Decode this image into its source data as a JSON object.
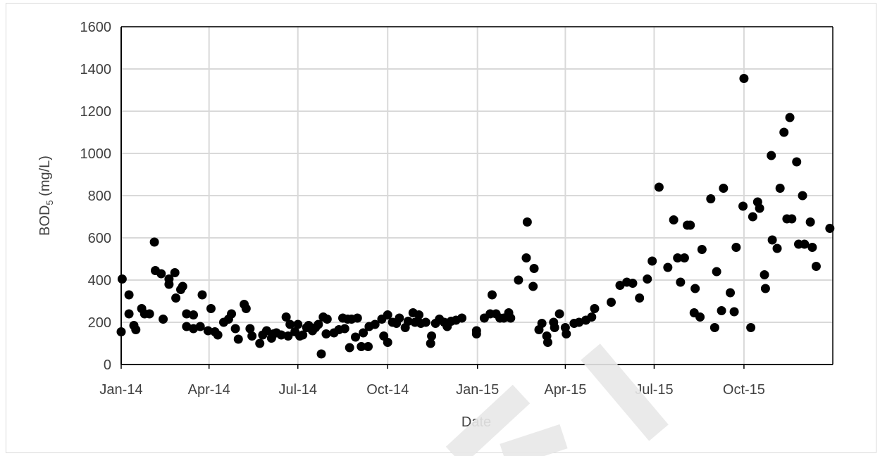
{
  "chart_data": {
    "type": "scatter",
    "xlabel": "Date",
    "ylabel_main": "BOD",
    "ylabel_sub": "5",
    "ylabel_unit": " (mg/L)",
    "x_ticks": [
      "Jan-14",
      "Apr-14",
      "Jul-14",
      "Oct-14",
      "Jan-15",
      "Apr-15",
      "Jul-15",
      "Oct-15"
    ],
    "x_tick_dates": [
      "2014-01-01",
      "2014-04-01",
      "2014-07-01",
      "2014-10-01",
      "2015-01-01",
      "2015-04-01",
      "2015-07-01",
      "2015-10-01"
    ],
    "xlim": [
      "2014-01-01",
      "2015-12-31"
    ],
    "ylim": [
      0,
      1600
    ],
    "y_ticks": [
      0,
      200,
      400,
      600,
      800,
      1000,
      1200,
      1400,
      1600
    ],
    "grid": true,
    "marker_color": "#000000",
    "points": [
      [
        "2014-01-01",
        155
      ],
      [
        "2014-01-02",
        405
      ],
      [
        "2014-01-09",
        330
      ],
      [
        "2014-01-09",
        240
      ],
      [
        "2014-01-14",
        185
      ],
      [
        "2014-01-16",
        165
      ],
      [
        "2014-01-22",
        265
      ],
      [
        "2014-01-25",
        240
      ],
      [
        "2014-01-30",
        240
      ],
      [
        "2014-02-04",
        580
      ],
      [
        "2014-02-05",
        445
      ],
      [
        "2014-02-11",
        430
      ],
      [
        "2014-02-13",
        215
      ],
      [
        "2014-02-19",
        405
      ],
      [
        "2014-02-19",
        380
      ],
      [
        "2014-02-25",
        435
      ],
      [
        "2014-02-26",
        315
      ],
      [
        "2014-03-03",
        355
      ],
      [
        "2014-03-05",
        370
      ],
      [
        "2014-03-09",
        180
      ],
      [
        "2014-03-09",
        240
      ],
      [
        "2014-03-16",
        170
      ],
      [
        "2014-03-16",
        235
      ],
      [
        "2014-03-23",
        180
      ],
      [
        "2014-03-25",
        330
      ],
      [
        "2014-03-31",
        160
      ],
      [
        "2014-04-03",
        265
      ],
      [
        "2014-04-07",
        155
      ],
      [
        "2014-04-10",
        140
      ],
      [
        "2014-04-16",
        200
      ],
      [
        "2014-04-21",
        215
      ],
      [
        "2014-04-24",
        240
      ],
      [
        "2014-04-28",
        170
      ],
      [
        "2014-05-01",
        120
      ],
      [
        "2014-05-07",
        285
      ],
      [
        "2014-05-09",
        265
      ],
      [
        "2014-05-13",
        170
      ],
      [
        "2014-05-15",
        135
      ],
      [
        "2014-05-23",
        100
      ],
      [
        "2014-05-26",
        140
      ],
      [
        "2014-05-30",
        160
      ],
      [
        "2014-06-04",
        125
      ],
      [
        "2014-06-06",
        145
      ],
      [
        "2014-06-09",
        150
      ],
      [
        "2014-06-14",
        140
      ],
      [
        "2014-06-19",
        225
      ],
      [
        "2014-06-21",
        135
      ],
      [
        "2014-06-23",
        190
      ],
      [
        "2014-06-28",
        155
      ],
      [
        "2014-07-01",
        190
      ],
      [
        "2014-07-03",
        135
      ],
      [
        "2014-07-06",
        140
      ],
      [
        "2014-07-10",
        175
      ],
      [
        "2014-07-12",
        185
      ],
      [
        "2014-07-16",
        160
      ],
      [
        "2014-07-19",
        175
      ],
      [
        "2014-07-22",
        190
      ],
      [
        "2014-07-25",
        50
      ],
      [
        "2014-07-27",
        225
      ],
      [
        "2014-07-30",
        145
      ],
      [
        "2014-07-31",
        215
      ],
      [
        "2014-08-07",
        150
      ],
      [
        "2014-08-12",
        165
      ],
      [
        "2014-08-16",
        220
      ],
      [
        "2014-08-18",
        170
      ],
      [
        "2014-08-21",
        215
      ],
      [
        "2014-08-23",
        80
      ],
      [
        "2014-08-25",
        215
      ],
      [
        "2014-08-29",
        130
      ],
      [
        "2014-08-31",
        220
      ],
      [
        "2014-09-04",
        85
      ],
      [
        "2014-09-06",
        150
      ],
      [
        "2014-09-11",
        85
      ],
      [
        "2014-09-12",
        180
      ],
      [
        "2014-09-18",
        190
      ],
      [
        "2014-09-25",
        215
      ],
      [
        "2014-09-27",
        135
      ],
      [
        "2014-10-01",
        105
      ],
      [
        "2014-10-01",
        235
      ],
      [
        "2014-10-06",
        200
      ],
      [
        "2014-10-10",
        195
      ],
      [
        "2014-10-13",
        220
      ],
      [
        "2014-10-19",
        175
      ],
      [
        "2014-10-22",
        205
      ],
      [
        "2014-10-27",
        245
      ],
      [
        "2014-10-29",
        200
      ],
      [
        "2014-11-02",
        235
      ],
      [
        "2014-11-04",
        195
      ],
      [
        "2014-11-09",
        200
      ],
      [
        "2014-11-14",
        100
      ],
      [
        "2014-11-15",
        135
      ],
      [
        "2014-11-19",
        195
      ],
      [
        "2014-11-23",
        215
      ],
      [
        "2014-11-28",
        200
      ],
      [
        "2014-12-01",
        180
      ],
      [
        "2014-12-05",
        205
      ],
      [
        "2014-12-10",
        210
      ],
      [
        "2014-12-16",
        220
      ],
      [
        "2014-12-31",
        160
      ],
      [
        "2014-12-31",
        145
      ],
      [
        "2015-01-08",
        220
      ],
      [
        "2015-01-14",
        240
      ],
      [
        "2015-01-16",
        330
      ],
      [
        "2015-01-20",
        240
      ],
      [
        "2015-01-24",
        220
      ],
      [
        "2015-01-28",
        220
      ],
      [
        "2015-02-02",
        245
      ],
      [
        "2015-02-04",
        220
      ],
      [
        "2015-02-12",
        400
      ],
      [
        "2015-02-20",
        505
      ],
      [
        "2015-02-21",
        675
      ],
      [
        "2015-02-27",
        370
      ],
      [
        "2015-02-28",
        455
      ],
      [
        "2015-03-05",
        165
      ],
      [
        "2015-03-08",
        195
      ],
      [
        "2015-03-13",
        135
      ],
      [
        "2015-03-14",
        105
      ],
      [
        "2015-03-20",
        200
      ],
      [
        "2015-03-21",
        175
      ],
      [
        "2015-03-26",
        240
      ],
      [
        "2015-04-01",
        175
      ],
      [
        "2015-04-02",
        145
      ],
      [
        "2015-04-10",
        195
      ],
      [
        "2015-04-15",
        200
      ],
      [
        "2015-04-22",
        210
      ],
      [
        "2015-04-28",
        225
      ],
      [
        "2015-05-01",
        265
      ],
      [
        "2015-05-18",
        295
      ],
      [
        "2015-05-27",
        375
      ],
      [
        "2015-06-03",
        390
      ],
      [
        "2015-06-09",
        385
      ],
      [
        "2015-06-16",
        315
      ],
      [
        "2015-06-24",
        405
      ],
      [
        "2015-06-29",
        490
      ],
      [
        "2015-07-06",
        840
      ],
      [
        "2015-07-15",
        460
      ],
      [
        "2015-07-21",
        685
      ],
      [
        "2015-07-25",
        505
      ],
      [
        "2015-07-28",
        390
      ],
      [
        "2015-08-01",
        505
      ],
      [
        "2015-08-04",
        660
      ],
      [
        "2015-08-07",
        660
      ],
      [
        "2015-08-11",
        245
      ],
      [
        "2015-08-12",
        360
      ],
      [
        "2015-08-17",
        225
      ],
      [
        "2015-08-19",
        545
      ],
      [
        "2015-08-28",
        785
      ],
      [
        "2015-09-01",
        175
      ],
      [
        "2015-09-03",
        440
      ],
      [
        "2015-09-08",
        255
      ],
      [
        "2015-09-10",
        835
      ],
      [
        "2015-09-17",
        340
      ],
      [
        "2015-09-21",
        250
      ],
      [
        "2015-09-23",
        555
      ],
      [
        "2015-09-30",
        750
      ],
      [
        "2015-10-01",
        1355
      ],
      [
        "2015-10-08",
        175
      ],
      [
        "2015-10-10",
        700
      ],
      [
        "2015-10-15",
        770
      ],
      [
        "2015-10-17",
        740
      ],
      [
        "2015-10-22",
        425
      ],
      [
        "2015-10-23",
        360
      ],
      [
        "2015-10-29",
        990
      ],
      [
        "2015-10-30",
        590
      ],
      [
        "2015-11-04",
        550
      ],
      [
        "2015-11-07",
        835
      ],
      [
        "2015-11-11",
        1100
      ],
      [
        "2015-11-14",
        690
      ],
      [
        "2015-11-17",
        1170
      ],
      [
        "2015-11-19",
        690
      ],
      [
        "2015-11-24",
        960
      ],
      [
        "2015-11-26",
        570
      ],
      [
        "2015-11-30",
        800
      ],
      [
        "2015-12-02",
        570
      ],
      [
        "2015-12-08",
        675
      ],
      [
        "2015-12-10",
        555
      ],
      [
        "2015-12-14",
        465
      ],
      [
        "2015-12-28",
        645
      ]
    ]
  }
}
